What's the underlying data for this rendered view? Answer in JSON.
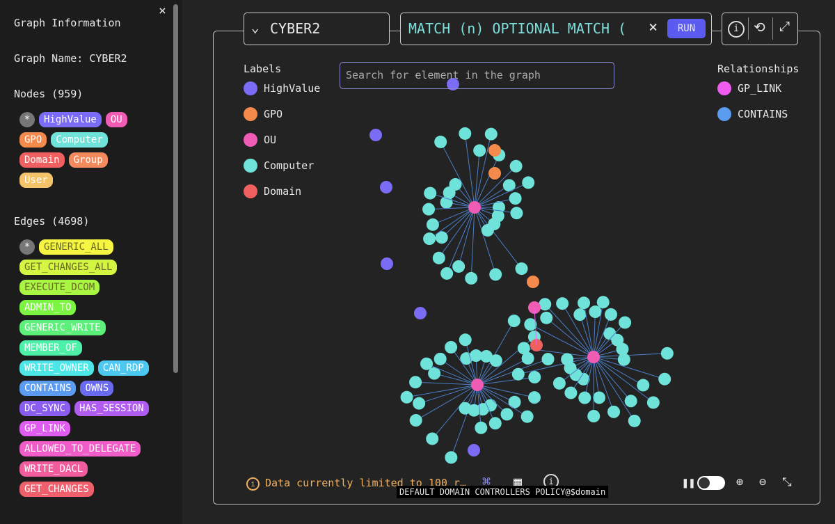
{
  "sidebar": {
    "title": "Graph Information",
    "graph_name": "Graph Name: CYBER2",
    "nodes_heading": "Nodes (959)",
    "node_labels": [
      "*",
      "HighValue",
      "OU",
      "GPO",
      "Computer",
      "Domain",
      "Group",
      "User"
    ],
    "edges_heading": "Edges (4698)",
    "edge_labels": [
      "*",
      "GENERIC_ALL",
      "GET_CHANGES_ALL",
      "EXECUTE_DCOM",
      "ADMIN_TO",
      "GENERIC_WRITE",
      "MEMBER_OF",
      "WRITE_OWNER",
      "CAN_RDP",
      "CONTAINS",
      "OWNS",
      "DC_SYNC",
      "HAS_SESSION",
      "GP_LINK",
      "ALLOWED_TO_DELEGATE",
      "WRITE_DACL",
      "GET_CHANGES"
    ]
  },
  "toolbar": {
    "graph_select": "CYBER2",
    "query": "MATCH (n) OPTIONAL MATCH (",
    "run": "RUN"
  },
  "search_placeholder": "Search for element in the graph",
  "legend": {
    "labels_title": "Labels",
    "labels": [
      "HighValue",
      "GPO",
      "OU",
      "Computer",
      "Domain"
    ],
    "relationships_title": "Relationships",
    "relationships": [
      "GP_LINK",
      "CONTAINS"
    ]
  },
  "status": "Data currently limited to 100 r…",
  "tooltip": "DEFAULT DOMAIN CONTROLLERS POLICY@$domain"
}
